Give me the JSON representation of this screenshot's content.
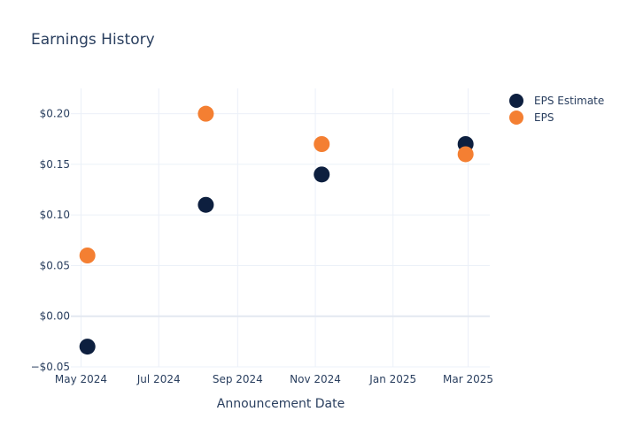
{
  "chart_data": {
    "type": "scatter",
    "title": "Earnings History",
    "xlabel": "Announcement Date",
    "ylabel": "",
    "x_axis_type": "date",
    "xlim": [
      "2024-04-23",
      "2025-03-18"
    ],
    "ylim": [
      -0.05,
      0.225
    ],
    "x_ticks": [
      {
        "date": "2024-05-01",
        "label": "May 2024"
      },
      {
        "date": "2024-07-01",
        "label": "Jul 2024"
      },
      {
        "date": "2024-09-01",
        "label": "Sep 2024"
      },
      {
        "date": "2024-11-01",
        "label": "Nov 2024"
      },
      {
        "date": "2025-01-01",
        "label": "Jan 2025"
      },
      {
        "date": "2025-03-01",
        "label": "Mar 2025"
      }
    ],
    "y_ticks": [
      {
        "value": -0.05,
        "label": "−$0.05"
      },
      {
        "value": 0,
        "label": "$0.00"
      },
      {
        "value": 0.05,
        "label": "$0.05"
      },
      {
        "value": 0.1,
        "label": "$0.10"
      },
      {
        "value": 0.15,
        "label": "$0.15"
      },
      {
        "value": 0.2,
        "label": "$0.20"
      }
    ],
    "grid": true,
    "legend_position": "top-right",
    "series": [
      {
        "name": "EPS Estimate",
        "color": "#0d1f3f",
        "points": [
          {
            "x": "2024-05-06",
            "y": -0.03
          },
          {
            "x": "2024-08-07",
            "y": 0.11
          },
          {
            "x": "2024-11-06",
            "y": 0.14
          },
          {
            "x": "2025-02-27",
            "y": 0.17
          }
        ]
      },
      {
        "name": "EPS",
        "color": "#f47f32",
        "points": [
          {
            "x": "2024-05-06",
            "y": 0.06
          },
          {
            "x": "2024-08-07",
            "y": 0.2
          },
          {
            "x": "2024-11-06",
            "y": 0.17
          },
          {
            "x": "2025-02-27",
            "y": 0.16
          }
        ]
      }
    ]
  }
}
